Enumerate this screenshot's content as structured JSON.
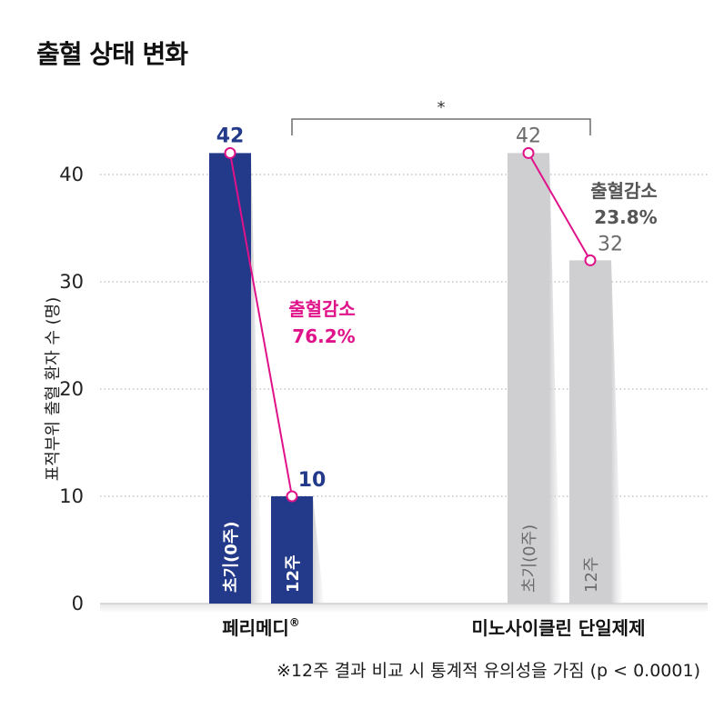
{
  "title": "출혈 상태 변화",
  "footnote": "※12주 결과 비교 시 통계적 유의성을 가짐 (p < 0.0001)",
  "chart_data": {
    "type": "bar",
    "title": "출혈 상태 변화",
    "ylabel": "표적부위 출혈 환자 수 (명)",
    "xlabel": "",
    "ylim": [
      0,
      45
    ],
    "yticks": [
      0,
      10,
      20,
      30,
      40
    ],
    "grid": true,
    "groups": [
      {
        "name": "페리메디",
        "mark": "®",
        "color": "#233a8a",
        "label_color": "#233a8a",
        "line_color": "#e0128a",
        "bars": [
          {
            "label": "초기(0주)",
            "value": 42
          },
          {
            "label": "12주",
            "value": 10
          }
        ],
        "annotation": {
          "text": "출혈감소",
          "value": "76.2%",
          "color": "#e0128a"
        }
      },
      {
        "name": "미노사이클린 단일제제",
        "mark": "",
        "color": "#cfcfd1",
        "label_color": "#6b6b6b",
        "line_color": "#e0128a",
        "bars": [
          {
            "label": "초기(0주)",
            "value": 42
          },
          {
            "label": "12주",
            "value": 32
          }
        ],
        "annotation": {
          "text": "출혈감소",
          "value": "23.8%",
          "color": "#555555"
        }
      }
    ],
    "significance": "*"
  }
}
